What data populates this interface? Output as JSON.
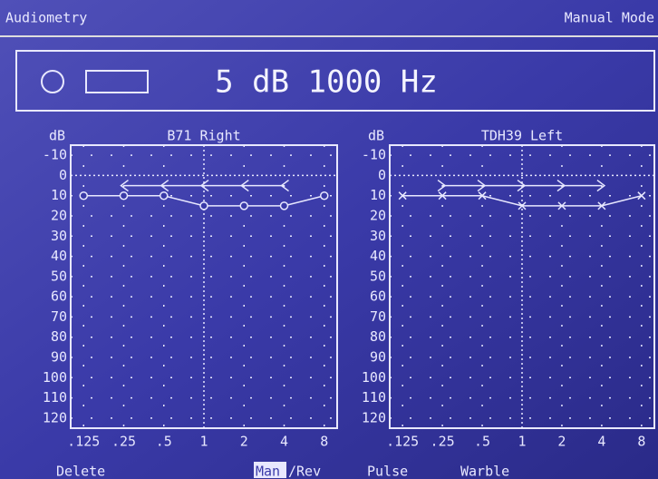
{
  "header": {
    "title": "Audiometry",
    "mode": "Manual Mode"
  },
  "status": {
    "text": "5 dB 1000 Hz"
  },
  "audiograms": [
    {
      "type": "audiogram",
      "title": "B71 Right",
      "ylabel": "dB",
      "log_x": true,
      "grid": true,
      "xlim": [
        0.1,
        10
      ],
      "ylim": [
        -15,
        125
      ],
      "xticks": [
        {
          "value": 0.125,
          "label": ".125"
        },
        {
          "value": 0.25,
          "label": ".25"
        },
        {
          "value": 0.5,
          "label": ".5"
        },
        1,
        2,
        4,
        8
      ],
      "yticks": [
        -10,
        0,
        10,
        20,
        30,
        40,
        50,
        60,
        70,
        80,
        90,
        100,
        110,
        120
      ],
      "series": [
        {
          "marker": "o",
          "color": "#e8e8ff",
          "x": [
            0.125,
            0.25,
            0.5,
            1,
            2,
            4,
            8
          ],
          "values": [
            10,
            10,
            10,
            15,
            15,
            15,
            10
          ]
        },
        {
          "marker": "<",
          "color": "#e8e8ff",
          "x": [
            0.25,
            0.5,
            1,
            2,
            4
          ],
          "values": [
            5,
            5,
            5,
            5,
            5
          ]
        }
      ]
    },
    {
      "type": "audiogram",
      "title": "TDH39 Left",
      "ylabel": "dB",
      "log_x": true,
      "grid": true,
      "xlim": [
        0.1,
        10
      ],
      "ylim": [
        -15,
        125
      ],
      "xticks": [
        {
          "value": 0.125,
          "label": ".125"
        },
        {
          "value": 0.25,
          "label": ".25"
        },
        {
          "value": 0.5,
          "label": ".5"
        },
        1,
        2,
        4,
        8
      ],
      "yticks": [
        -10,
        0,
        10,
        20,
        30,
        40,
        50,
        60,
        70,
        80,
        90,
        100,
        110,
        120
      ],
      "series": [
        {
          "marker": "x",
          "color": "#e8e8ff",
          "x": [
            0.125,
            0.25,
            0.5,
            1,
            2,
            4,
            8
          ],
          "values": [
            10,
            10,
            10,
            15,
            15,
            15,
            10
          ]
        },
        {
          "marker": ">",
          "color": "#e8e8ff",
          "x": [
            0.25,
            0.5,
            1,
            2,
            4
          ],
          "values": [
            5,
            5,
            5,
            5,
            5
          ]
        }
      ]
    }
  ],
  "menu": [
    {
      "label": "Delete"
    },
    {
      "label": "Man",
      "selected": true
    },
    {
      "label": "/Rev"
    },
    {
      "label": "Pulse"
    },
    {
      "label": "Warble"
    }
  ]
}
